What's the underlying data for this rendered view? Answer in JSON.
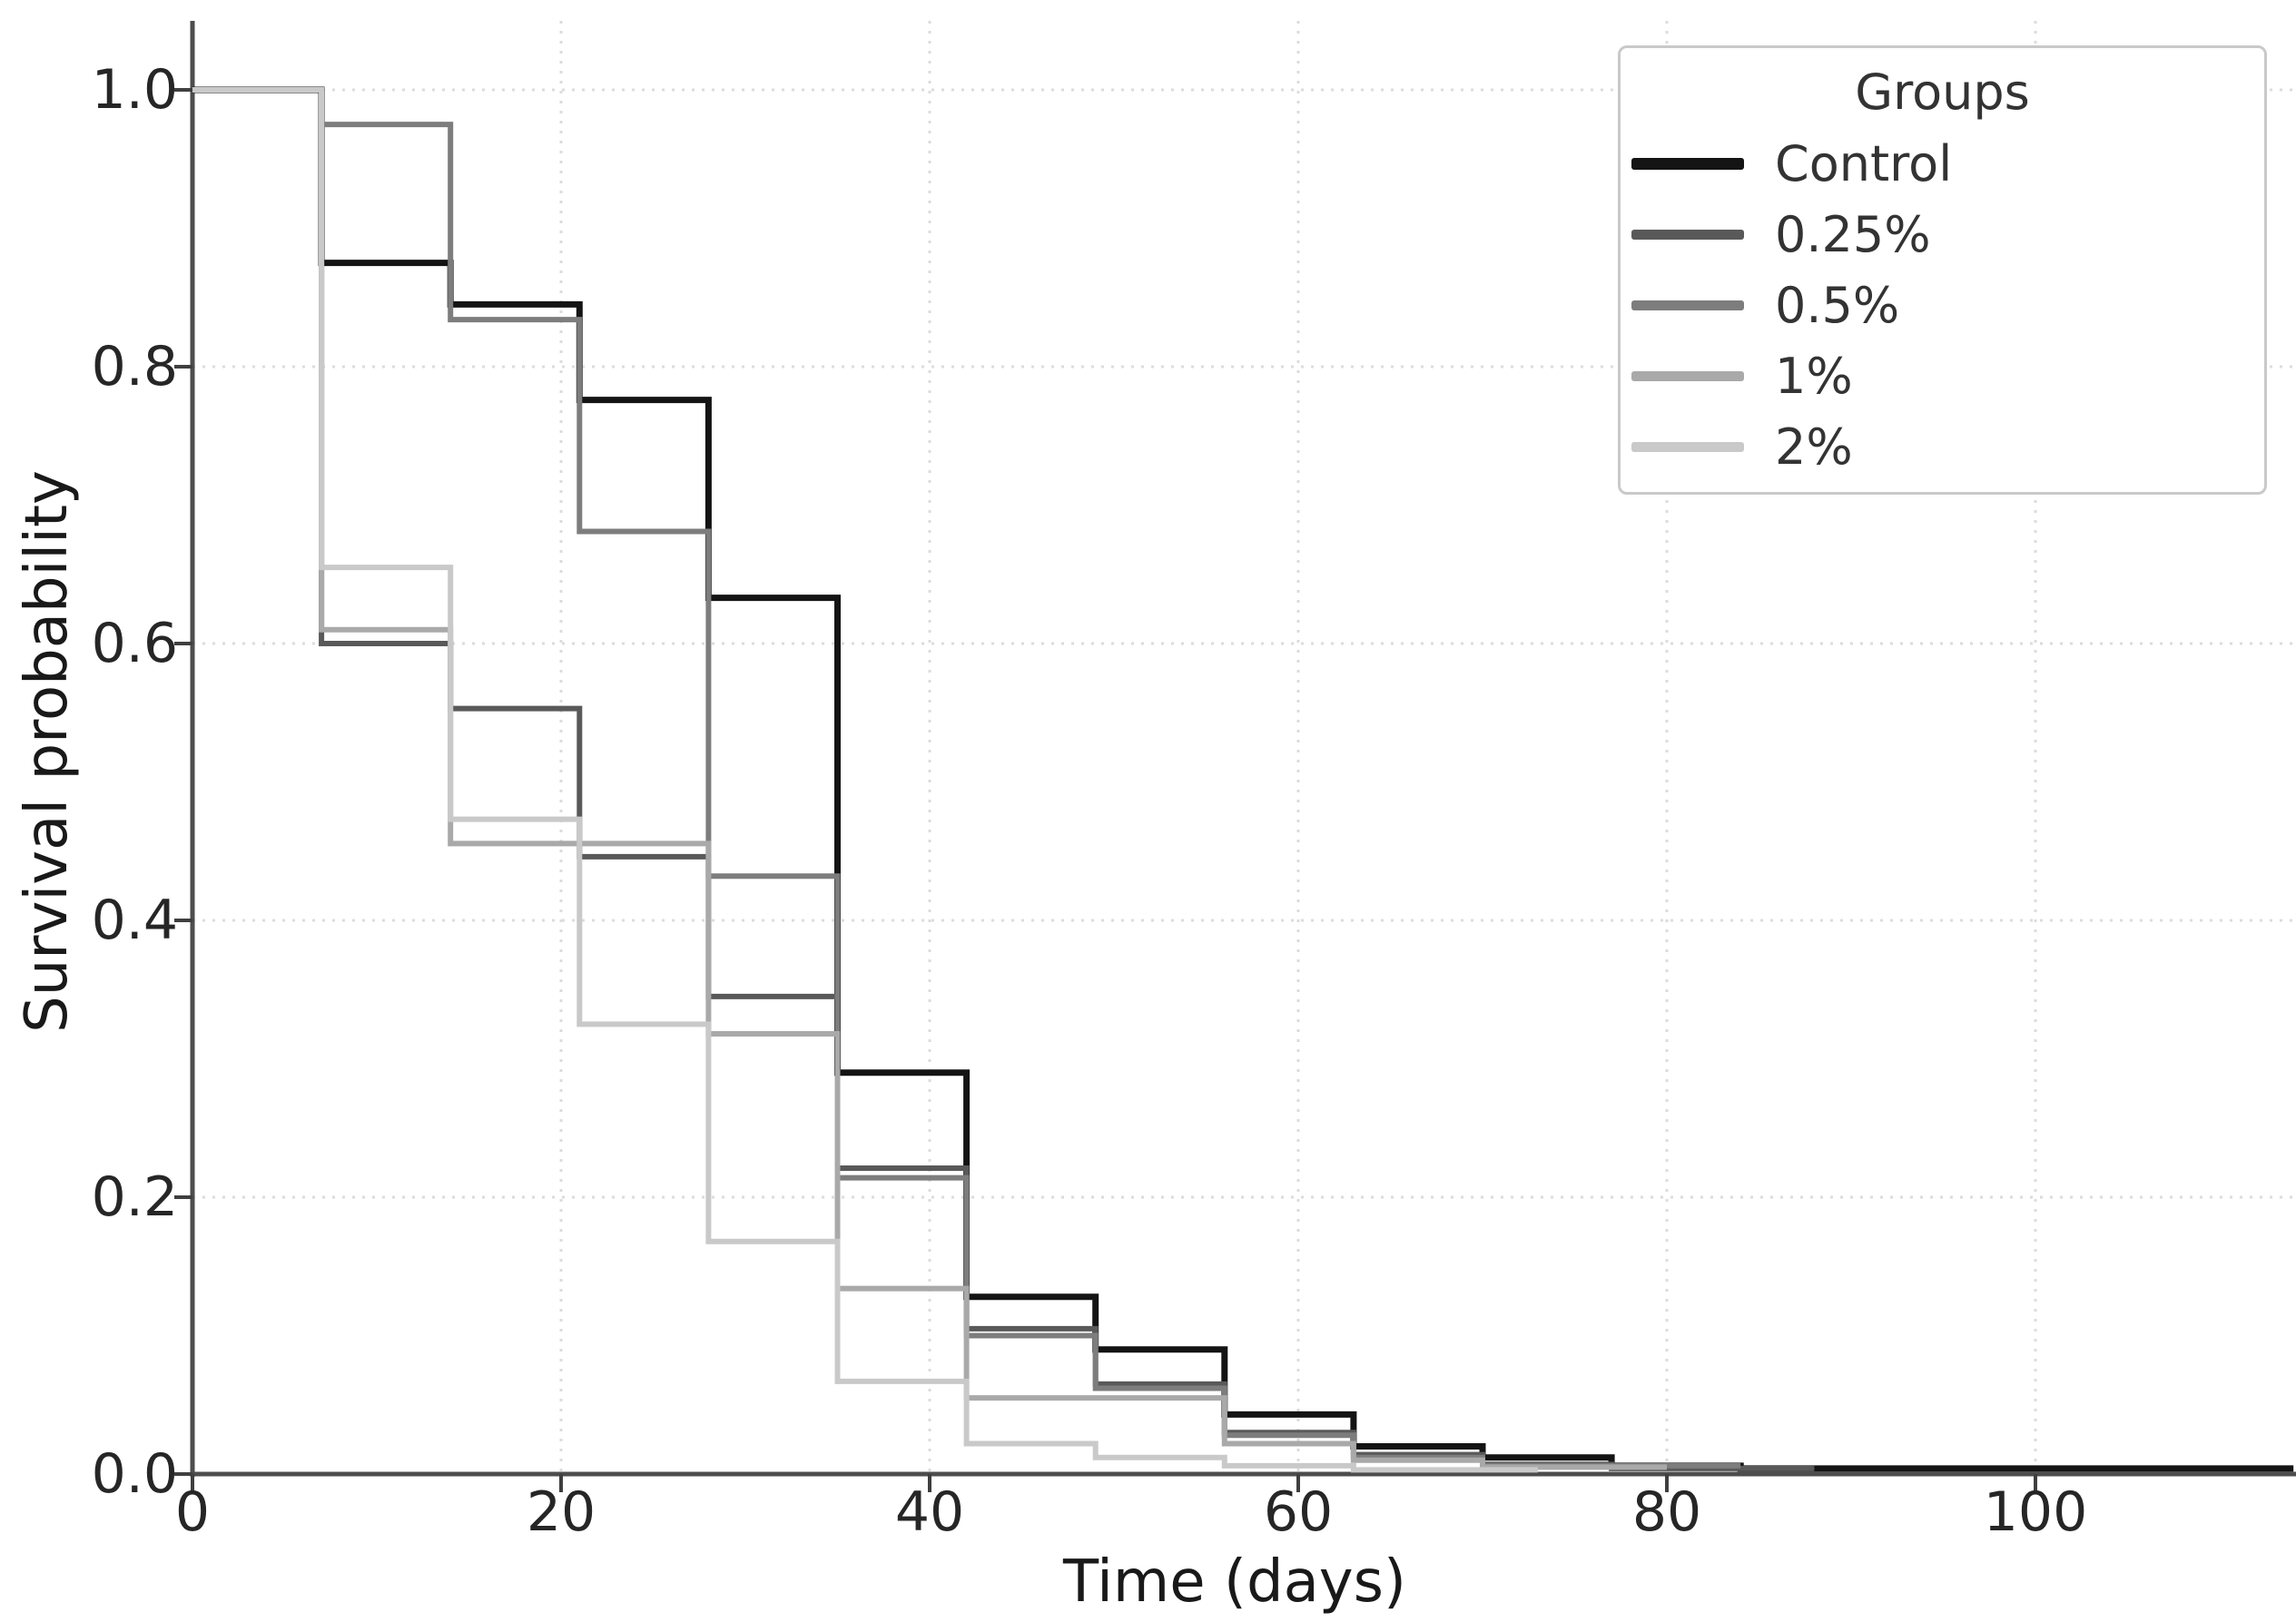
{
  "chart_data": {
    "type": "line",
    "variant": "kaplan-meier-step-survival",
    "title": "",
    "xlabel": "Time (days)",
    "ylabel": "Survival probability",
    "xlim": [
      0,
      114
    ],
    "ylim": [
      0,
      1.05
    ],
    "xticks": [
      0,
      20,
      40,
      60,
      80,
      100
    ],
    "xtick_labels": [
      "0",
      "20",
      "40",
      "60",
      "80",
      "100"
    ],
    "yticks": [
      0.0,
      0.2,
      0.4,
      0.6,
      0.8,
      1.0
    ],
    "ytick_labels": [
      "0.0",
      "0.2",
      "0.4",
      "0.6",
      "0.8",
      "1.0"
    ],
    "grid": {
      "show": true,
      "style": "dotted",
      "color": "#dcdcdc"
    },
    "legend": {
      "title": "Groups",
      "position": "upper-right"
    },
    "axis_colors": {
      "spine": "#4d4d4d",
      "tick": "#3f3f3f",
      "tick_label": "#262626"
    },
    "series": [
      {
        "name": "Control",
        "color": "#141414",
        "line_width": 7,
        "end_x": 114,
        "steps": [
          [
            0,
            1.0
          ],
          [
            7,
            0.875
          ],
          [
            14,
            0.845
          ],
          [
            21,
            0.776
          ],
          [
            28,
            0.633
          ],
          [
            35,
            0.29
          ],
          [
            42,
            0.128
          ],
          [
            49,
            0.09
          ],
          [
            56,
            0.043
          ],
          [
            63,
            0.02
          ],
          [
            70,
            0.012
          ],
          [
            77,
            0.006
          ],
          [
            84,
            0.004
          ]
        ]
      },
      {
        "name": "0.25%",
        "color": "#595959",
        "line_width": 6,
        "end_x": 88,
        "steps": [
          [
            0,
            1.0
          ],
          [
            7,
            0.6
          ],
          [
            14,
            0.553
          ],
          [
            21,
            0.446
          ],
          [
            28,
            0.345
          ],
          [
            35,
            0.221
          ],
          [
            42,
            0.105
          ],
          [
            49,
            0.065
          ],
          [
            56,
            0.03
          ],
          [
            63,
            0.014
          ],
          [
            70,
            0.007
          ],
          [
            77,
            0.004
          ]
        ]
      },
      {
        "name": "0.5%",
        "color": "#7d7d7d",
        "line_width": 6,
        "end_x": 84,
        "steps": [
          [
            0,
            1.0
          ],
          [
            7,
            0.975
          ],
          [
            14,
            0.834
          ],
          [
            21,
            0.681
          ],
          [
            28,
            0.432
          ],
          [
            35,
            0.214
          ],
          [
            42,
            0.1
          ],
          [
            49,
            0.062
          ],
          [
            56,
            0.028
          ],
          [
            63,
            0.012
          ],
          [
            70,
            0.006
          ]
        ]
      },
      {
        "name": "1%",
        "color": "#a9a9a9",
        "line_width": 6,
        "end_x": 80,
        "steps": [
          [
            0,
            1.0
          ],
          [
            7,
            0.61
          ],
          [
            14,
            0.4555
          ],
          [
            28,
            0.318
          ],
          [
            35,
            0.134
          ],
          [
            42,
            0.055
          ],
          [
            56,
            0.022
          ],
          [
            63,
            0.01
          ],
          [
            70,
            0.005
          ]
        ]
      },
      {
        "name": "2%",
        "color": "#c9c9c9",
        "line_width": 6,
        "end_x": 73,
        "steps": [
          [
            0,
            1.0
          ],
          [
            7,
            0.655
          ],
          [
            14,
            0.473
          ],
          [
            21,
            0.325
          ],
          [
            28,
            0.168
          ],
          [
            35,
            0.067
          ],
          [
            42,
            0.022
          ],
          [
            49,
            0.012
          ],
          [
            56,
            0.006
          ],
          [
            63,
            0.003
          ]
        ]
      }
    ]
  }
}
